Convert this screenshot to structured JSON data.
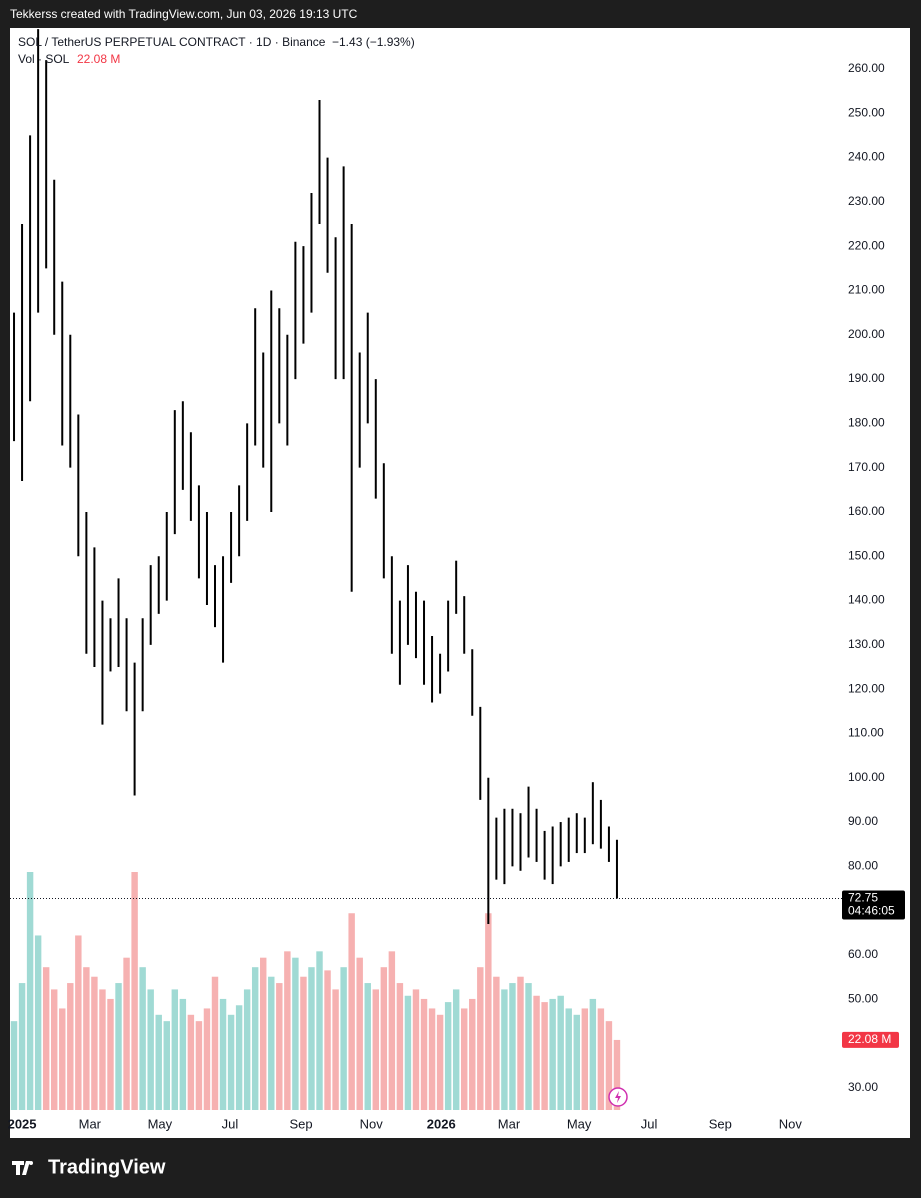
{
  "header": "Tekkerss created with TradingView.com, Jun 03, 2026 19:13 UTC",
  "footer": "TradingView",
  "chart_data": {
    "type": "range_bar",
    "title": "SOL / TetherUS PERPETUAL CONTRACT · 1D · Binance",
    "change": "−1.43 (−1.93%)",
    "volume_title": "Vol · SOL",
    "last_volume": 22.08,
    "last_volume_label": "22.08 M",
    "last_price": 72.75,
    "countdown": "04:46:05",
    "color": "#000000",
    "up_color": "#8fd3cc",
    "down_color": "#f4a3a3",
    "x": [
      -1,
      0,
      1,
      2,
      3,
      4,
      5,
      6,
      7,
      8,
      9,
      10,
      11,
      12,
      13,
      14,
      15,
      16,
      17,
      18,
      19,
      20,
      21,
      22,
      23,
      24,
      25,
      26,
      27,
      28,
      29,
      30,
      31,
      32,
      33,
      34,
      35,
      36,
      37,
      38,
      39,
      40,
      41,
      42,
      43,
      44,
      45,
      46,
      47,
      48,
      49,
      50,
      51,
      52,
      53,
      54,
      55,
      56,
      57,
      58,
      59,
      60,
      61,
      62,
      63,
      64,
      65,
      66,
      67,
      68,
      69,
      70,
      71,
      72,
      73,
      74
    ],
    "high": [
      205,
      225,
      245,
      269,
      262,
      235,
      212,
      200,
      182,
      160,
      152,
      140,
      136,
      145,
      136,
      126,
      136,
      148,
      150,
      160,
      183,
      185,
      178,
      166,
      160,
      148,
      150,
      160,
      166,
      180,
      206,
      196,
      210,
      206,
      200,
      221,
      220,
      232,
      253,
      240,
      222,
      238,
      225,
      196,
      205,
      190,
      171,
      150,
      140,
      148,
      142,
      140,
      132,
      128,
      140,
      149,
      141,
      129,
      116,
      100,
      91,
      93,
      93,
      92,
      98,
      93,
      88,
      89,
      90,
      91,
      92,
      91,
      99,
      95,
      89,
      86
    ],
    "low": [
      176,
      167,
      185,
      205,
      215,
      200,
      175,
      170,
      150,
      128,
      125,
      112,
      124,
      125,
      115,
      96,
      115,
      130,
      137,
      140,
      155,
      165,
      158,
      145,
      139,
      134,
      126,
      144,
      150,
      158,
      175,
      170,
      160,
      180,
      175,
      190,
      198,
      205,
      225,
      214,
      190,
      190,
      142,
      170,
      180,
      163,
      145,
      128,
      121,
      130,
      127,
      121,
      117,
      119,
      124,
      137,
      128,
      114,
      95,
      67,
      77,
      76,
      80,
      79,
      82,
      81,
      77,
      76,
      80,
      81,
      83,
      83,
      85,
      84,
      81,
      72.75
    ],
    "volume": [
      28,
      40,
      75,
      55,
      45,
      38,
      32,
      40,
      55,
      45,
      42,
      38,
      35,
      40,
      48,
      75,
      45,
      38,
      30,
      28,
      38,
      35,
      30,
      28,
      32,
      42,
      35,
      30,
      33,
      38,
      45,
      48,
      42,
      40,
      50,
      48,
      42,
      45,
      50,
      44,
      38,
      45,
      62,
      48,
      40,
      38,
      45,
      50,
      40,
      36,
      38,
      35,
      32,
      30,
      34,
      38,
      32,
      35,
      45,
      62,
      42,
      38,
      40,
      42,
      40,
      36,
      34,
      35,
      36,
      32,
      30,
      32,
      35,
      32,
      28,
      22.08
    ],
    "xlim": [
      -1.5,
      100.5
    ],
    "ylim": [
      25,
      269.25
    ],
    "y2lim": [
      0,
      75
    ],
    "xticks": [
      {
        "value": 0,
        "label": "2025"
      },
      {
        "value": 8.43,
        "label": "Mar"
      },
      {
        "value": 17.14,
        "label": "May"
      },
      {
        "value": 25.86,
        "label": "Jul"
      },
      {
        "value": 34.71,
        "label": "Sep"
      },
      {
        "value": 43.43,
        "label": "Nov"
      },
      {
        "value": 52.14,
        "label": "2026"
      },
      {
        "value": 60.57,
        "label": "Mar"
      },
      {
        "value": 69.29,
        "label": "May"
      },
      {
        "value": 78,
        "label": "Jul"
      },
      {
        "value": 86.86,
        "label": "Sep"
      },
      {
        "value": 95.57,
        "label": "Nov"
      }
    ],
    "yticks": [
      {
        "value": 30,
        "label": "30.00"
      },
      {
        "value": 50,
        "label": "50.00"
      },
      {
        "value": 60,
        "label": "60.00"
      },
      {
        "value": 80,
        "label": "80.00"
      },
      {
        "value": 90,
        "label": "90.00"
      },
      {
        "value": 100,
        "label": "100.00"
      },
      {
        "value": 110,
        "label": "110.00"
      },
      {
        "value": 120,
        "label": "120.00"
      },
      {
        "value": 130,
        "label": "130.00"
      },
      {
        "value": 140,
        "label": "140.00"
      },
      {
        "value": 150,
        "label": "150.00"
      },
      {
        "value": 160,
        "label": "160.00"
      },
      {
        "value": 170,
        "label": "170.00"
      },
      {
        "value": 180,
        "label": "180.00"
      },
      {
        "value": 190,
        "label": "190.00"
      },
      {
        "value": 200,
        "label": "200.00"
      },
      {
        "value": 210,
        "label": "210.00"
      },
      {
        "value": 220,
        "label": "220.00"
      },
      {
        "value": 230,
        "label": "230.00"
      },
      {
        "value": 240,
        "label": "240.00"
      },
      {
        "value": 250,
        "label": "250.00"
      },
      {
        "value": 260,
        "label": "260.00"
      }
    ]
  }
}
